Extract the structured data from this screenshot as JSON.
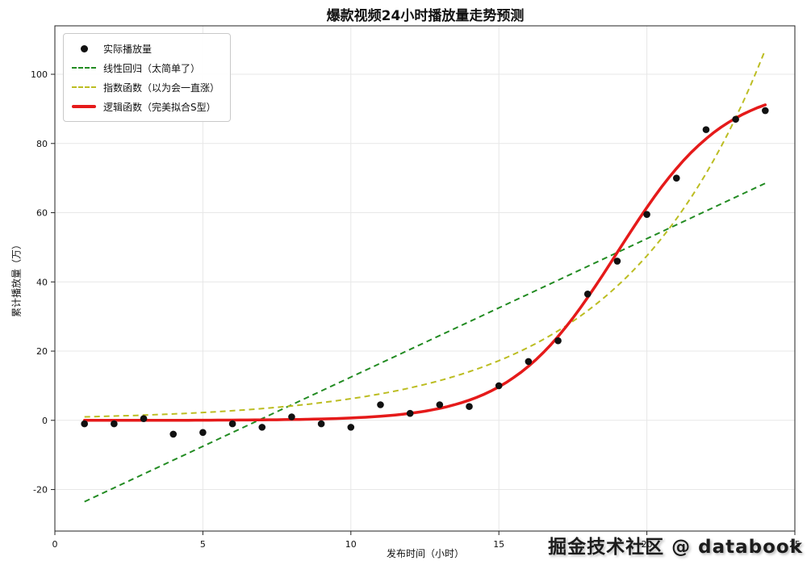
{
  "figure": {
    "title": "爆款视频24小时播放量走势预测",
    "watermark": "掘金技术社区 @ databook"
  },
  "legend": {
    "items": [
      {
        "label": "实际播放量",
        "type": "dot",
        "color": "#111111"
      },
      {
        "label": "线性回归（太简单了）",
        "type": "dashed",
        "color": "#228B22"
      },
      {
        "label": "指数函数（以为会一直涨）",
        "type": "dashed",
        "color": "#bcbd22"
      },
      {
        "label": "逻辑函数（完美拟合S型）",
        "type": "solid",
        "color": "#e51a1a"
      }
    ]
  },
  "chart_data": {
    "type": "scatter",
    "title": "爆款视频24小时播放量走势预测",
    "xlabel": "发布时间（小时）",
    "ylabel": "累计播放量（万）",
    "xlim": [
      0,
      25
    ],
    "ylim": [
      -32,
      114
    ],
    "x_ticks": [
      0,
      5,
      10,
      15,
      20,
      25
    ],
    "y_ticks": [
      -20,
      0,
      20,
      40,
      60,
      80,
      100
    ],
    "grid": true,
    "legend_position": "upper left",
    "scatter": {
      "name": "实际播放量",
      "color": "#111111",
      "x": [
        1,
        2,
        3,
        4,
        5,
        6,
        7,
        8,
        9,
        10,
        11,
        12,
        13,
        14,
        15,
        16,
        17,
        18,
        19,
        20,
        21,
        22,
        23,
        24
      ],
      "y": [
        -1,
        -1,
        0.5,
        -4,
        -3.5,
        -1,
        -2,
        1,
        -1,
        -2,
        4.5,
        2,
        4.5,
        4,
        10,
        17,
        23,
        36.5,
        46,
        59.5,
        70,
        84,
        87,
        89.5
      ]
    },
    "fits": {
      "linear": {
        "name": "线性回归（太简单了）",
        "slope": 4.0,
        "intercept": -27.5,
        "x_range": [
          1,
          24
        ],
        "color": "#228B22",
        "style": "dashed",
        "width": 2
      },
      "exponential": {
        "name": "指数函数（以为会一直涨）",
        "a": 0.82,
        "b": 0.203,
        "x_range": [
          1,
          24
        ],
        "color": "#bcbd22",
        "style": "dashed",
        "width": 2
      },
      "logistic": {
        "name": "逻辑函数（完美拟合S型）",
        "L": 97,
        "k": 0.55,
        "x0": 19,
        "x_range": [
          1,
          24
        ],
        "color": "#e51a1a",
        "style": "solid",
        "width": 3.5
      }
    }
  }
}
